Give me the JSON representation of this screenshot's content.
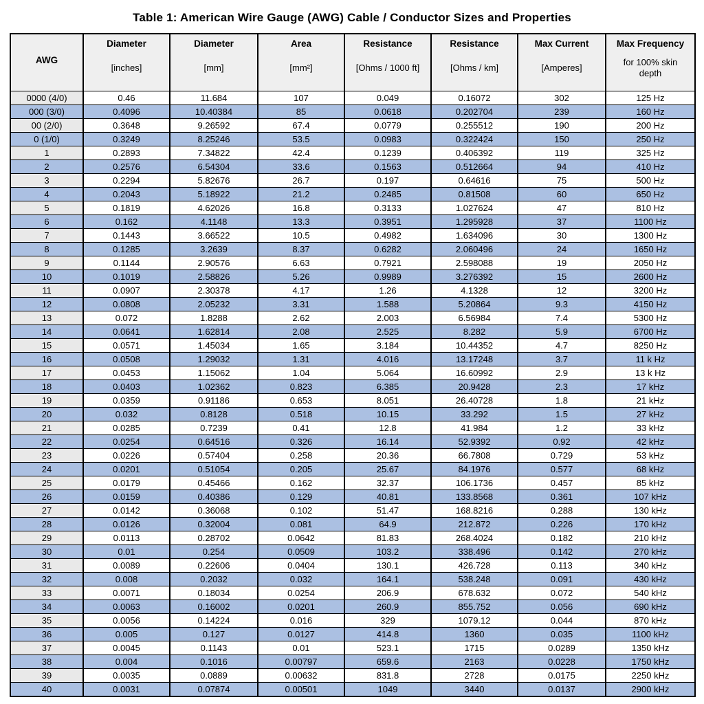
{
  "page": {
    "title": "Table 1: American Wire Gauge (AWG) Cable / Conductor Sizes and Properties"
  },
  "colors": {
    "alternate_row": "#abc0e2",
    "header_bg": "#efefef",
    "awg_column_bg": "#e9e9e9",
    "border": "#000000"
  },
  "table": {
    "columns": [
      {
        "key": "awg",
        "label": "AWG",
        "sub": ""
      },
      {
        "key": "diameter-inches",
        "label": "Diameter",
        "sub": "[inches]"
      },
      {
        "key": "diameter-mm",
        "label": "Diameter",
        "sub": "[mm]"
      },
      {
        "key": "area-mm2",
        "label": "Area",
        "sub": "[mm²]"
      },
      {
        "key": "resistance-1000ft",
        "label": "Resistance",
        "sub": "[Ohms / 1000 ft]"
      },
      {
        "key": "resistance-km",
        "label": "Resistance",
        "sub": "[Ohms / km]"
      },
      {
        "key": "max-current",
        "label": "Max Current",
        "sub": "[Amperes]"
      },
      {
        "key": "max-frequency",
        "label": "Max Frequency",
        "sub": "for 100% skin depth"
      }
    ],
    "rows": [
      [
        "0000 (4/0)",
        "0.46",
        "11.684",
        "107",
        "0.049",
        "0.16072",
        "302",
        "125 Hz"
      ],
      [
        "000 (3/0)",
        "0.4096",
        "10.40384",
        "85",
        "0.0618",
        "0.202704",
        "239",
        "160 Hz"
      ],
      [
        "00 (2/0)",
        "0.3648",
        "9.26592",
        "67.4",
        "0.0779",
        "0.255512",
        "190",
        "200 Hz"
      ],
      [
        "0 (1/0)",
        "0.3249",
        "8.25246",
        "53.5",
        "0.0983",
        "0.322424",
        "150",
        "250 Hz"
      ],
      [
        "1",
        "0.2893",
        "7.34822",
        "42.4",
        "0.1239",
        "0.406392",
        "119",
        "325 Hz"
      ],
      [
        "2",
        "0.2576",
        "6.54304",
        "33.6",
        "0.1563",
        "0.512664",
        "94",
        "410 Hz"
      ],
      [
        "3",
        "0.2294",
        "5.82676",
        "26.7",
        "0.197",
        "0.64616",
        "75",
        "500 Hz"
      ],
      [
        "4",
        "0.2043",
        "5.18922",
        "21.2",
        "0.2485",
        "0.81508",
        "60",
        "650 Hz"
      ],
      [
        "5",
        "0.1819",
        "4.62026",
        "16.8",
        "0.3133",
        "1.027624",
        "47",
        "810 Hz"
      ],
      [
        "6",
        "0.162",
        "4.1148",
        "13.3",
        "0.3951",
        "1.295928",
        "37",
        "1100 Hz"
      ],
      [
        "7",
        "0.1443",
        "3.66522",
        "10.5",
        "0.4982",
        "1.634096",
        "30",
        "1300 Hz"
      ],
      [
        "8",
        "0.1285",
        "3.2639",
        "8.37",
        "0.6282",
        "2.060496",
        "24",
        "1650 Hz"
      ],
      [
        "9",
        "0.1144",
        "2.90576",
        "6.63",
        "0.7921",
        "2.598088",
        "19",
        "2050 Hz"
      ],
      [
        "10",
        "0.1019",
        "2.58826",
        "5.26",
        "0.9989",
        "3.276392",
        "15",
        "2600 Hz"
      ],
      [
        "11",
        "0.0907",
        "2.30378",
        "4.17",
        "1.26",
        "4.1328",
        "12",
        "3200 Hz"
      ],
      [
        "12",
        "0.0808",
        "2.05232",
        "3.31",
        "1.588",
        "5.20864",
        "9.3",
        "4150 Hz"
      ],
      [
        "13",
        "0.072",
        "1.8288",
        "2.62",
        "2.003",
        "6.56984",
        "7.4",
        "5300 Hz"
      ],
      [
        "14",
        "0.0641",
        "1.62814",
        "2.08",
        "2.525",
        "8.282",
        "5.9",
        "6700 Hz"
      ],
      [
        "15",
        "0.0571",
        "1.45034",
        "1.65",
        "3.184",
        "10.44352",
        "4.7",
        "8250 Hz"
      ],
      [
        "16",
        "0.0508",
        "1.29032",
        "1.31",
        "4.016",
        "13.17248",
        "3.7",
        "11 k Hz"
      ],
      [
        "17",
        "0.0453",
        "1.15062",
        "1.04",
        "5.064",
        "16.60992",
        "2.9",
        "13 k Hz"
      ],
      [
        "18",
        "0.0403",
        "1.02362",
        "0.823",
        "6.385",
        "20.9428",
        "2.3",
        "17 kHz"
      ],
      [
        "19",
        "0.0359",
        "0.91186",
        "0.653",
        "8.051",
        "26.40728",
        "1.8",
        "21 kHz"
      ],
      [
        "20",
        "0.032",
        "0.8128",
        "0.518",
        "10.15",
        "33.292",
        "1.5",
        "27 kHz"
      ],
      [
        "21",
        "0.0285",
        "0.7239",
        "0.41",
        "12.8",
        "41.984",
        "1.2",
        "33 kHz"
      ],
      [
        "22",
        "0.0254",
        "0.64516",
        "0.326",
        "16.14",
        "52.9392",
        "0.92",
        "42 kHz"
      ],
      [
        "23",
        "0.0226",
        "0.57404",
        "0.258",
        "20.36",
        "66.7808",
        "0.729",
        "53 kHz"
      ],
      [
        "24",
        "0.0201",
        "0.51054",
        "0.205",
        "25.67",
        "84.1976",
        "0.577",
        "68 kHz"
      ],
      [
        "25",
        "0.0179",
        "0.45466",
        "0.162",
        "32.37",
        "106.1736",
        "0.457",
        "85 kHz"
      ],
      [
        "26",
        "0.0159",
        "0.40386",
        "0.129",
        "40.81",
        "133.8568",
        "0.361",
        "107 kHz"
      ],
      [
        "27",
        "0.0142",
        "0.36068",
        "0.102",
        "51.47",
        "168.8216",
        "0.288",
        "130 kHz"
      ],
      [
        "28",
        "0.0126",
        "0.32004",
        "0.081",
        "64.9",
        "212.872",
        "0.226",
        "170 kHz"
      ],
      [
        "29",
        "0.0113",
        "0.28702",
        "0.0642",
        "81.83",
        "268.4024",
        "0.182",
        "210 kHz"
      ],
      [
        "30",
        "0.01",
        "0.254",
        "0.0509",
        "103.2",
        "338.496",
        "0.142",
        "270 kHz"
      ],
      [
        "31",
        "0.0089",
        "0.22606",
        "0.0404",
        "130.1",
        "426.728",
        "0.113",
        "340 kHz"
      ],
      [
        "32",
        "0.008",
        "0.2032",
        "0.032",
        "164.1",
        "538.248",
        "0.091",
        "430 kHz"
      ],
      [
        "33",
        "0.0071",
        "0.18034",
        "0.0254",
        "206.9",
        "678.632",
        "0.072",
        "540 kHz"
      ],
      [
        "34",
        "0.0063",
        "0.16002",
        "0.0201",
        "260.9",
        "855.752",
        "0.056",
        "690 kHz"
      ],
      [
        "35",
        "0.0056",
        "0.14224",
        "0.016",
        "329",
        "1079.12",
        "0.044",
        "870 kHz"
      ],
      [
        "36",
        "0.005",
        "0.127",
        "0.0127",
        "414.8",
        "1360",
        "0.035",
        "1100 kHz"
      ],
      [
        "37",
        "0.0045",
        "0.1143",
        "0.01",
        "523.1",
        "1715",
        "0.0289",
        "1350 kHz"
      ],
      [
        "38",
        "0.004",
        "0.1016",
        "0.00797",
        "659.6",
        "2163",
        "0.0228",
        "1750 kHz"
      ],
      [
        "39",
        "0.0035",
        "0.0889",
        "0.00632",
        "831.8",
        "2728",
        "0.0175",
        "2250 kHz"
      ],
      [
        "40",
        "0.0031",
        "0.07874",
        "0.00501",
        "1049",
        "3440",
        "0.0137",
        "2900 kHz"
      ]
    ]
  }
}
